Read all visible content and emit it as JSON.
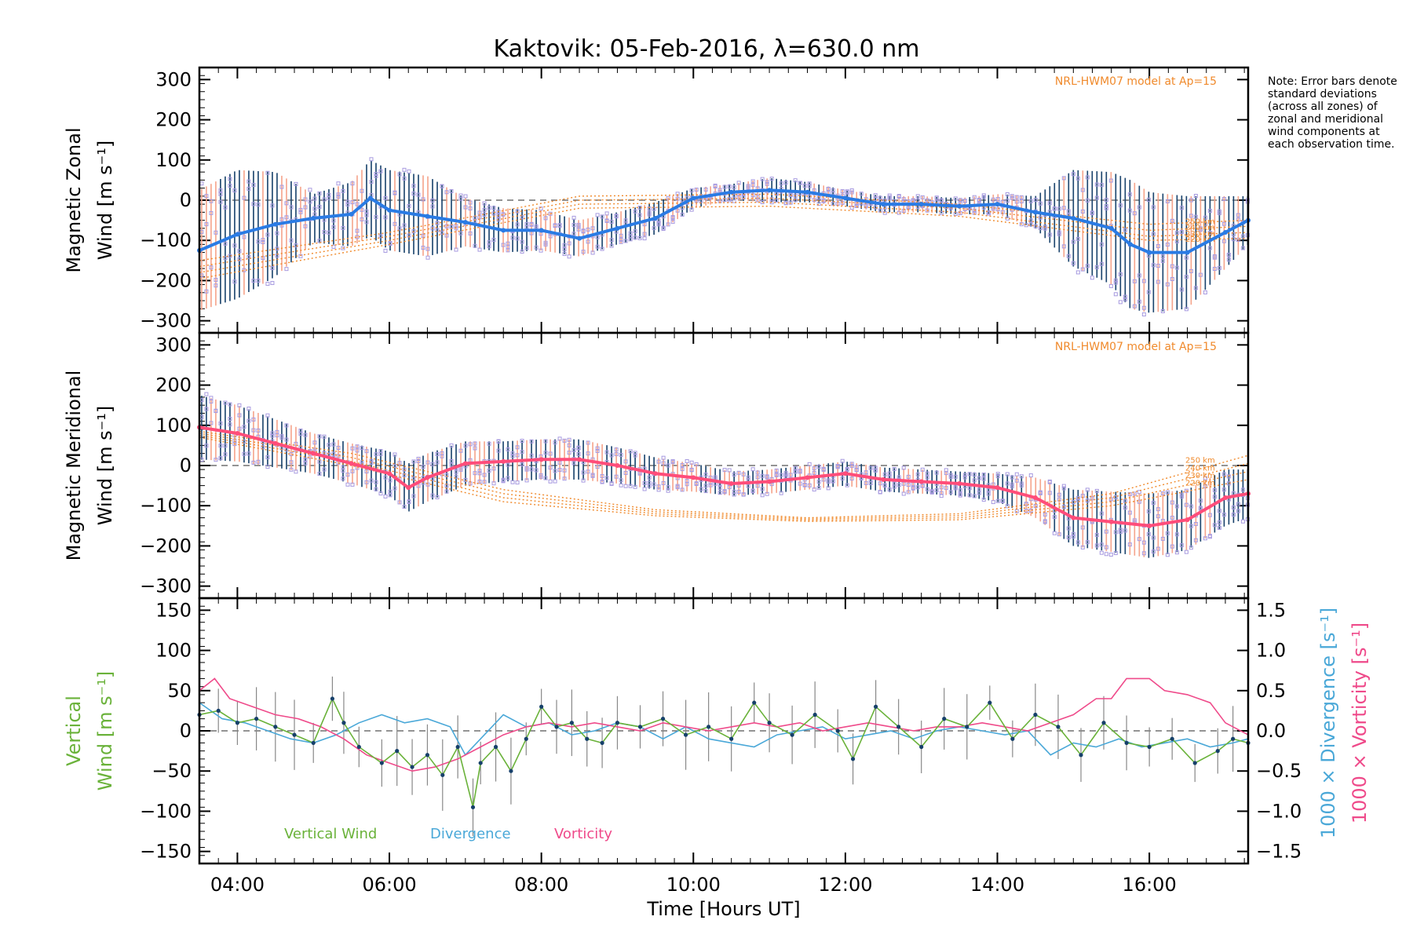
{
  "title": "Kaktovik: 05-Feb-2016, λ=630.0 nm",
  "note": "Note: Error bars denote standard deviations (across all zones) of zonal and meridional wind components at each observation time.",
  "colors": {
    "zonal_mean": "#2a7be4",
    "meridional_mean": "#ff4d7a",
    "model": "#f08a2c",
    "zone_points": "#a89be0",
    "errorbar_dark": "#16406a",
    "errorbar_light": "#f5a38a",
    "vertical": "#6ab23a",
    "divergence": "#4aa8d8",
    "vorticity": "#ef4a8a",
    "zero_line": "#555555"
  },
  "chart_data": [
    {
      "id": "zonal",
      "type": "line",
      "ylabel_line1": "Magnetic Zonal",
      "ylabel_line2": "Wind [m s⁻¹]",
      "ylim": [
        -330,
        330
      ],
      "yticks": [
        -300,
        -200,
        -100,
        0,
        100,
        200,
        300
      ],
      "xlim": [
        3.5,
        17.3
      ],
      "model_label": "NRL-HWM07 model at Ap=15",
      "model_alt_labels": [
        "250 km",
        "240 km",
        "230 km",
        "220 km"
      ],
      "mean_series": {
        "name": "",
        "x": [
          3.5,
          4.0,
          4.5,
          5.0,
          5.5,
          5.75,
          6.0,
          6.5,
          7.0,
          7.5,
          8.0,
          8.5,
          9.0,
          9.5,
          10.0,
          10.5,
          11.0,
          11.5,
          12.0,
          12.5,
          13.0,
          13.5,
          14.0,
          14.5,
          15.0,
          15.5,
          15.75,
          16.0,
          16.5,
          17.0,
          17.3
        ],
        "y": [
          -125,
          -85,
          -60,
          -45,
          -35,
          5,
          -25,
          -40,
          -55,
          -75,
          -75,
          -95,
          -70,
          -45,
          5,
          20,
          25,
          20,
          5,
          -10,
          -10,
          -15,
          -10,
          -30,
          -45,
          -70,
          -110,
          -130,
          -130,
          -80,
          -50
        ]
      },
      "error_bar_sd": [
        150,
        160,
        130,
        60,
        80,
        95,
        100,
        100,
        60,
        55,
        50,
        45,
        40,
        40,
        25,
        20,
        30,
        25,
        20,
        20,
        20,
        20,
        25,
        40,
        120,
        140,
        160,
        150,
        140,
        90,
        60
      ],
      "model_curves": [
        {
          "x": [
            3.5,
            6.0,
            8.5,
            11.0,
            13.5,
            16.0,
            17.3
          ],
          "y": [
            -150,
            -80,
            10,
            15,
            -10,
            -60,
            -50
          ]
        },
        {
          "x": [
            3.5,
            6.0,
            8.5,
            11.0,
            13.5,
            16.0,
            17.3
          ],
          "y": [
            -165,
            -90,
            0,
            5,
            -20,
            -75,
            -65
          ]
        },
        {
          "x": [
            3.5,
            6.0,
            8.5,
            11.0,
            13.5,
            16.0,
            17.3
          ],
          "y": [
            -180,
            -100,
            -10,
            -5,
            -30,
            -90,
            -80
          ]
        },
        {
          "x": [
            3.5,
            6.0,
            8.5,
            11.0,
            13.5,
            16.0,
            17.3
          ],
          "y": [
            -195,
            -110,
            -20,
            -15,
            -40,
            -100,
            -95
          ]
        }
      ]
    },
    {
      "id": "meridional",
      "type": "line",
      "ylabel_line1": "Magnetic Meridional",
      "ylabel_line2": "Wind [m s⁻¹]",
      "ylim": [
        -330,
        330
      ],
      "yticks": [
        -300,
        -200,
        -100,
        0,
        100,
        200,
        300
      ],
      "xlim": [
        3.5,
        17.3
      ],
      "model_label": "NRL-HWM07 model at Ap=15",
      "model_alt_labels": [
        "250 km",
        "240 km",
        "230 km",
        "220 km"
      ],
      "mean_series": {
        "name": "",
        "x": [
          3.5,
          4.0,
          4.5,
          5.0,
          5.5,
          6.0,
          6.25,
          6.5,
          7.0,
          7.5,
          8.0,
          8.5,
          9.0,
          9.5,
          10.0,
          10.5,
          11.0,
          11.5,
          12.0,
          12.5,
          13.0,
          13.5,
          14.0,
          14.5,
          15.0,
          15.5,
          16.0,
          16.5,
          17.0,
          17.3
        ],
        "y": [
          95,
          80,
          55,
          30,
          5,
          -20,
          -55,
          -30,
          5,
          10,
          15,
          15,
          0,
          -20,
          -30,
          -45,
          -40,
          -30,
          -20,
          -35,
          -40,
          -45,
          -55,
          -80,
          -130,
          -140,
          -150,
          -135,
          -80,
          -70
        ]
      },
      "error_bar_sd": [
        80,
        70,
        60,
        50,
        50,
        55,
        60,
        60,
        55,
        50,
        50,
        50,
        45,
        40,
        35,
        30,
        30,
        30,
        30,
        30,
        30,
        30,
        35,
        50,
        70,
        75,
        80,
        75,
        70,
        60
      ],
      "model_curves": [
        {
          "x": [
            3.5,
            5.5,
            7.5,
            9.5,
            11.5,
            13.5,
            15.5,
            17.3
          ],
          "y": [
            85,
            30,
            -60,
            -110,
            -130,
            -120,
            -70,
            25
          ]
        },
        {
          "x": [
            3.5,
            5.5,
            7.5,
            9.5,
            11.5,
            13.5,
            15.5,
            17.3
          ],
          "y": [
            80,
            20,
            -70,
            -115,
            -133,
            -125,
            -80,
            5
          ]
        },
        {
          "x": [
            3.5,
            5.5,
            7.5,
            9.5,
            11.5,
            13.5,
            15.5,
            17.3
          ],
          "y": [
            75,
            10,
            -80,
            -120,
            -136,
            -130,
            -90,
            -15
          ]
        },
        {
          "x": [
            3.5,
            5.5,
            7.5,
            9.5,
            11.5,
            13.5,
            15.5,
            17.3
          ],
          "y": [
            70,
            0,
            -90,
            -125,
            -139,
            -135,
            -100,
            -35
          ]
        }
      ]
    },
    {
      "id": "vertical",
      "type": "line",
      "ylabel_line1": "Vertical",
      "ylabel_line2": "Wind [m s⁻¹]",
      "ylim": [
        -165,
        165
      ],
      "yticks": [
        -150,
        -100,
        -50,
        0,
        50,
        100,
        150
      ],
      "right_axis": {
        "label_div": "1000 × Divergence [s⁻¹]",
        "label_vort": "1000 × Vorticity [s⁻¹]",
        "ylim": [
          -1.65,
          1.65
        ],
        "ytick_labels": [
          "−1.5",
          "−1.0",
          "−0.5",
          "0.0",
          "0.5",
          "1.0",
          "1.5"
        ],
        "yticks": [
          -1.5,
          -1.0,
          -0.5,
          0.0,
          0.5,
          1.0,
          1.5
        ]
      },
      "xlim": [
        3.5,
        17.3
      ],
      "xticks": [
        4,
        6,
        8,
        10,
        12,
        14,
        16
      ],
      "xtick_labels": [
        "04:00",
        "06:00",
        "08:00",
        "10:00",
        "12:00",
        "14:00",
        "16:00"
      ],
      "xlabel": "Time [Hours UT]",
      "legend": [
        "Vertical Wind",
        "Divergence",
        "Vorticity"
      ],
      "series": [
        {
          "name": "Vertical Wind",
          "x": [
            3.5,
            3.75,
            4.0,
            4.25,
            4.5,
            4.75,
            5.0,
            5.25,
            5.4,
            5.6,
            5.9,
            6.1,
            6.3,
            6.5,
            6.7,
            6.9,
            7.1,
            7.2,
            7.4,
            7.6,
            7.8,
            8.0,
            8.2,
            8.4,
            8.6,
            8.8,
            9.0,
            9.3,
            9.6,
            9.9,
            10.2,
            10.5,
            10.8,
            11.0,
            11.3,
            11.6,
            11.9,
            12.1,
            12.4,
            12.7,
            13.0,
            13.3,
            13.6,
            13.9,
            14.2,
            14.5,
            14.8,
            15.1,
            15.4,
            15.7,
            16.0,
            16.3,
            16.6,
            16.9,
            17.1,
            17.3
          ],
          "y": [
            20,
            25,
            10,
            15,
            5,
            -5,
            -15,
            40,
            10,
            -20,
            -40,
            -25,
            -45,
            -30,
            -55,
            -20,
            -95,
            -40,
            -20,
            -50,
            -10,
            30,
            5,
            10,
            -10,
            -15,
            10,
            5,
            15,
            -5,
            5,
            -10,
            35,
            10,
            -5,
            20,
            0,
            -35,
            30,
            5,
            -20,
            15,
            5,
            35,
            -10,
            20,
            5,
            -30,
            10,
            -15,
            -20,
            -10,
            -40,
            -25,
            -10,
            -15
          ]
        },
        {
          "name": "Divergence",
          "x": [
            3.5,
            3.8,
            4.1,
            4.4,
            4.7,
            5.0,
            5.3,
            5.6,
            5.9,
            6.2,
            6.5,
            6.8,
            7.0,
            7.2,
            7.5,
            7.8,
            8.1,
            8.4,
            8.7,
            9.0,
            9.3,
            9.6,
            9.9,
            10.2,
            10.5,
            10.8,
            11.1,
            11.4,
            11.7,
            12.0,
            12.3,
            12.6,
            12.9,
            13.2,
            13.5,
            13.8,
            14.1,
            14.4,
            14.7,
            15.0,
            15.3,
            15.6,
            15.9,
            16.2,
            16.5,
            16.8,
            17.1,
            17.3
          ],
          "y": [
            0.35,
            0.15,
            0.1,
            0.0,
            -0.1,
            -0.15,
            -0.05,
            0.1,
            0.2,
            0.1,
            0.15,
            0.05,
            -0.3,
            -0.1,
            0.2,
            0.05,
            0.1,
            -0.05,
            0.0,
            0.1,
            0.05,
            -0.1,
            0.05,
            -0.1,
            -0.15,
            -0.2,
            -0.05,
            0.0,
            0.05,
            -0.1,
            -0.05,
            0.0,
            -0.1,
            0.0,
            0.05,
            0.0,
            -0.05,
            0.0,
            -0.3,
            -0.15,
            -0.2,
            -0.1,
            -0.2,
            -0.15,
            -0.1,
            -0.2,
            -0.15,
            -0.1
          ]
        },
        {
          "name": "Vorticity",
          "x": [
            3.5,
            3.7,
            3.9,
            4.2,
            4.5,
            4.8,
            5.1,
            5.4,
            5.7,
            6.0,
            6.3,
            6.6,
            6.9,
            7.2,
            7.5,
            7.8,
            8.1,
            8.4,
            8.7,
            9.0,
            9.3,
            9.6,
            9.9,
            10.2,
            10.5,
            10.8,
            11.1,
            11.4,
            11.7,
            12.0,
            12.3,
            12.6,
            12.9,
            13.2,
            13.5,
            13.8,
            14.1,
            14.4,
            14.7,
            15.0,
            15.3,
            15.5,
            15.7,
            16.0,
            16.2,
            16.5,
            16.8,
            17.0,
            17.3
          ],
          "y": [
            0.5,
            0.65,
            0.4,
            0.3,
            0.2,
            0.15,
            0.05,
            -0.1,
            -0.3,
            -0.4,
            -0.5,
            -0.45,
            -0.35,
            -0.2,
            -0.05,
            0.05,
            0.1,
            0.05,
            0.1,
            0.05,
            0.0,
            0.1,
            0.05,
            0.0,
            0.05,
            0.1,
            0.05,
            0.1,
            0.0,
            0.05,
            0.1,
            0.05,
            0.0,
            0.05,
            0.05,
            0.1,
            0.05,
            0.0,
            0.1,
            0.2,
            0.4,
            0.4,
            0.65,
            0.65,
            0.5,
            0.45,
            0.35,
            0.1,
            -0.05
          ]
        }
      ]
    }
  ]
}
